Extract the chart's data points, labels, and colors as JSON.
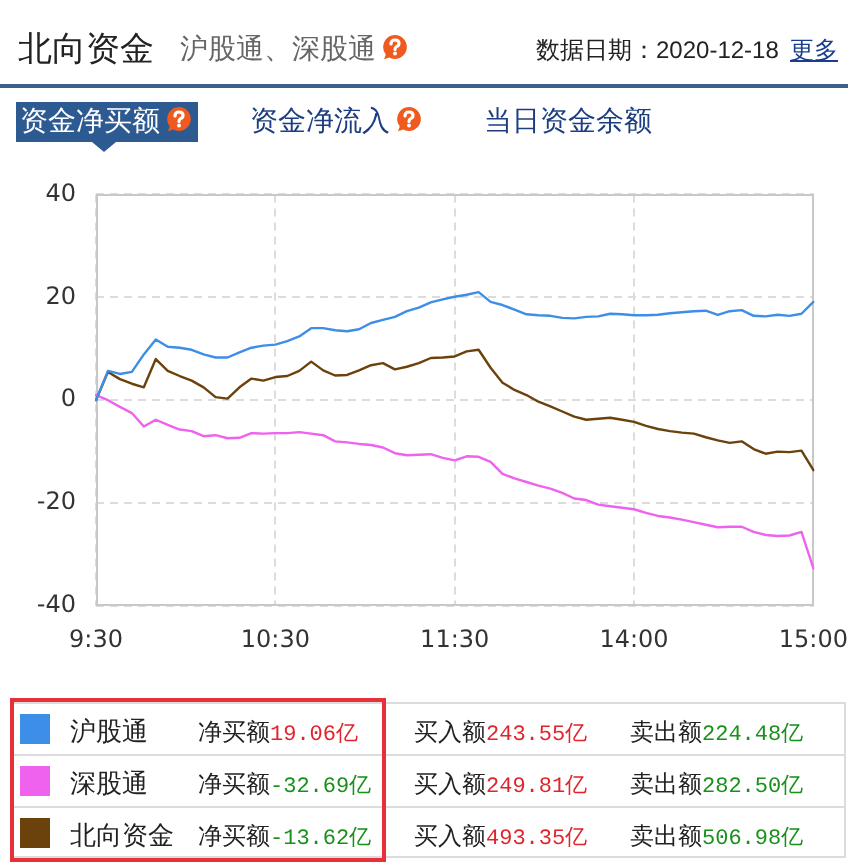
{
  "chart_data": {
    "type": "line",
    "title": "北向资金",
    "subtitle": "沪股通、深股通",
    "annotations": [
      "数据日期：2020-12-18",
      "更多",
      "资金净买额",
      "资金净流入",
      "当日资金余额",
      "净买额19.06亿",
      "买入额243.55亿",
      "卖出额224.48亿",
      "净买额-32.69亿",
      "买入额249.81亿",
      "卖出额282.50亿",
      "净买额-13.62亿",
      "买入额493.35亿",
      "卖出额506.98亿"
    ],
    "categories": [
      "9:30",
      null,
      null,
      null,
      null,
      null,
      null,
      null,
      null,
      null,
      null,
      null,
      null,
      null,
      null,
      "10:30",
      null,
      null,
      null,
      null,
      null,
      null,
      null,
      null,
      null,
      null,
      null,
      null,
      null,
      null,
      "11:30",
      null,
      null,
      null,
      null,
      null,
      null,
      null,
      null,
      null,
      null,
      null,
      null,
      null,
      null,
      "14:00",
      null,
      null,
      null,
      null,
      null,
      null,
      null,
      null,
      null,
      null,
      null,
      null,
      null,
      null,
      "15:00"
    ],
    "series": [
      {
        "name": "沪股通",
        "color": "#3d8ee6",
        "values": [
          0,
          5.7,
          5.1,
          5.5,
          8.9,
          11.8,
          10.4,
          10.2,
          9.8,
          8.9,
          8.3,
          8.3,
          9.3,
          10.2,
          10.6,
          10.8,
          11.5,
          12.4,
          14.0,
          14.0,
          13.6,
          13.4,
          13.8,
          15.0,
          15.6,
          16.2,
          17.3,
          18.0,
          19.0,
          19.6,
          20.1,
          20.5,
          21.0,
          19.1,
          18.5,
          17.6,
          16.7,
          16.5,
          16.4,
          16.0,
          15.9,
          16.2,
          16.3,
          16.8,
          16.7,
          16.5,
          16.5,
          16.6,
          16.9,
          17.1,
          17.3,
          17.4,
          16.6,
          17.3,
          17.5,
          16.4,
          16.3,
          16.6,
          16.4,
          16.8,
          19.1
        ]
      },
      {
        "name": "深股通",
        "color": "#ee62ee",
        "values": [
          1.0,
          0,
          -1.3,
          -2.5,
          -5.1,
          -3.8,
          -4.8,
          -5.7,
          -6.0,
          -7.0,
          -6.8,
          -7.4,
          -7.3,
          -6.4,
          -6.5,
          -6.4,
          -6.4,
          -6.2,
          -6.5,
          -6.8,
          -8.0,
          -8.2,
          -8.5,
          -8.7,
          -9.2,
          -10.3,
          -10.7,
          -10.6,
          -10.5,
          -11.2,
          -11.7,
          -10.9,
          -11.0,
          -12.0,
          -14.3,
          -15.2,
          -15.9,
          -16.6,
          -17.2,
          -18.0,
          -19.1,
          -19.4,
          -20.3,
          -20.6,
          -20.9,
          -21.2,
          -21.9,
          -22.5,
          -22.8,
          -23.2,
          -23.7,
          -24.2,
          -24.7,
          -24.6,
          -24.6,
          -25.6,
          -26.2,
          -26.4,
          -26.3,
          -25.6,
          -32.7
        ]
      },
      {
        "name": "北向资金",
        "color": "#6b410c",
        "values": [
          0,
          5.5,
          4.1,
          3.2,
          2.5,
          8.0,
          5.7,
          4.7,
          3.8,
          2.5,
          0.6,
          0.3,
          2.5,
          4.2,
          3.8,
          4.5,
          4.7,
          5.7,
          7.5,
          5.8,
          4.8,
          4.9,
          5.8,
          6.8,
          7.2,
          6.0,
          6.5,
          7.2,
          8.2,
          8.3,
          8.5,
          9.5,
          9.8,
          6.3,
          3.4,
          2.0,
          1.0,
          -0.3,
          -1.2,
          -2.2,
          -3.2,
          -3.8,
          -3.6,
          -3.4,
          -3.8,
          -4.2,
          -5.0,
          -5.6,
          -6.0,
          -6.3,
          -6.5,
          -7.2,
          -7.8,
          -8.3,
          -8.0,
          -9.5,
          -10.4,
          -10.0,
          -10.1,
          -9.8,
          -13.6
        ]
      }
    ],
    "ylim": [
      -40,
      40
    ],
    "yticks": [
      -40,
      -20,
      0,
      20,
      40
    ],
    "grid": true,
    "legend": "bottom"
  }
}
